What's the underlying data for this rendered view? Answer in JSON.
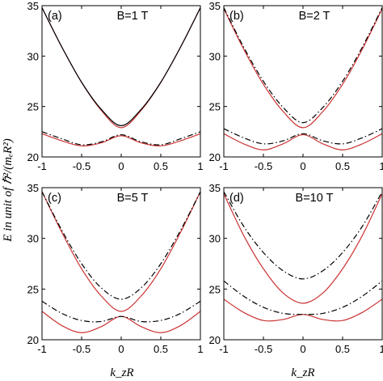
{
  "ylabel": "E   in unit of ℏ²/(mₑR²)",
  "xlabel": "k_zR",
  "chart_data": [
    {
      "type": "line",
      "panel": "(a)",
      "title": "B=1 T",
      "xlim": [
        -1,
        1
      ],
      "ylim": [
        20,
        35
      ],
      "xticks": [
        "-1",
        "-0.5",
        "0",
        "0.5",
        "1"
      ],
      "yticks": [
        "20",
        "25",
        "30",
        "35"
      ],
      "x": [
        -1,
        -0.75,
        -0.5,
        -0.25,
        0,
        0.25,
        0.5,
        0.75,
        1
      ],
      "series": [
        {
          "style": "solid-red",
          "color": "#cc3333",
          "values": [
            22.3,
            21.6,
            21.1,
            21.4,
            22.1,
            21.4,
            21.1,
            21.6,
            22.3
          ]
        },
        {
          "style": "dashdot-black",
          "color": "#000000",
          "values": [
            22.5,
            21.8,
            21.2,
            21.5,
            22.2,
            21.5,
            21.2,
            21.8,
            22.5
          ]
        },
        {
          "style": "solid-red",
          "color": "#cc3333",
          "values": [
            34.8,
            30.9,
            27.4,
            24.6,
            22.9,
            24.6,
            27.4,
            30.9,
            34.8
          ]
        },
        {
          "style": "solid-black",
          "color": "#000000",
          "values": [
            34.8,
            30.9,
            27.4,
            24.7,
            23.1,
            24.7,
            27.4,
            30.9,
            34.8
          ]
        }
      ]
    },
    {
      "type": "line",
      "panel": "(b)",
      "title": "B=2 T",
      "xlim": [
        -1,
        1
      ],
      "ylim": [
        20,
        35
      ],
      "xticks": [
        "-1",
        "-0.5",
        "0",
        "0.5",
        "1"
      ],
      "yticks": [
        "20",
        "25",
        "30",
        "35"
      ],
      "x": [
        -1,
        -0.75,
        -0.5,
        -0.25,
        0,
        0.25,
        0.5,
        0.75,
        1
      ],
      "series": [
        {
          "style": "solid-red",
          "color": "#cc3333",
          "values": [
            22.3,
            21.3,
            20.7,
            21.3,
            22.2,
            21.3,
            20.7,
            21.3,
            22.3
          ]
        },
        {
          "style": "dashdot-black",
          "color": "#000000",
          "values": [
            22.8,
            21.9,
            21.3,
            21.6,
            22.3,
            21.6,
            21.3,
            21.9,
            22.8
          ]
        },
        {
          "style": "solid-red",
          "color": "#cc3333",
          "values": [
            34.7,
            30.7,
            27.2,
            24.5,
            22.9,
            24.5,
            27.2,
            30.7,
            34.7
          ]
        },
        {
          "style": "dashdot-black",
          "color": "#000000",
          "values": [
            34.8,
            30.9,
            27.5,
            24.9,
            23.4,
            24.9,
            27.5,
            30.9,
            34.8
          ]
        }
      ]
    },
    {
      "type": "line",
      "panel": "(c)",
      "title": "B=5 T",
      "xlim": [
        -1,
        1
      ],
      "ylim": [
        20,
        35
      ],
      "xticks": [
        "-1",
        "-0.5",
        "0",
        "0.5",
        "1"
      ],
      "yticks": [
        "20",
        "25",
        "30",
        "35"
      ],
      "x": [
        -1,
        -0.75,
        -0.5,
        -0.25,
        0,
        0.25,
        0.5,
        0.75,
        1
      ],
      "series": [
        {
          "style": "solid-red",
          "color": "#cc3333",
          "values": [
            22.8,
            21.4,
            20.7,
            21.3,
            22.3,
            21.3,
            20.7,
            21.4,
            22.8
          ]
        },
        {
          "style": "dashdot-black",
          "color": "#000000",
          "values": [
            23.8,
            22.6,
            21.9,
            21.8,
            22.3,
            21.8,
            21.9,
            22.6,
            23.8
          ]
        },
        {
          "style": "solid-red",
          "color": "#cc3333",
          "values": [
            34.6,
            30.6,
            27.0,
            24.3,
            22.8,
            24.3,
            27.0,
            30.6,
            34.6
          ]
        },
        {
          "style": "dashdot-black",
          "color": "#000000",
          "values": [
            34.6,
            30.8,
            27.5,
            25.1,
            24.0,
            25.1,
            27.5,
            30.8,
            34.6
          ]
        }
      ]
    },
    {
      "type": "line",
      "panel": "(d)",
      "title": "B=10 T",
      "xlim": [
        -1,
        1
      ],
      "ylim": [
        20,
        35
      ],
      "xticks": [
        "-1",
        "-0.5",
        "0",
        "0.5",
        "1"
      ],
      "yticks": [
        "20",
        "25",
        "30",
        "35"
      ],
      "x": [
        -1,
        -0.75,
        -0.5,
        -0.25,
        0,
        0.25,
        0.5,
        0.75,
        1
      ],
      "series": [
        {
          "style": "solid-red",
          "color": "#cc3333",
          "values": [
            24.0,
            22.7,
            21.9,
            22.0,
            22.5,
            22.0,
            21.9,
            22.7,
            24.0
          ]
        },
        {
          "style": "dashdot-black",
          "color": "#000000",
          "values": [
            25.8,
            24.3,
            23.2,
            22.6,
            22.5,
            22.6,
            23.2,
            24.3,
            25.8
          ]
        },
        {
          "style": "solid-red",
          "color": "#cc3333",
          "values": [
            34.4,
            30.3,
            27.0,
            24.6,
            23.6,
            24.6,
            27.0,
            30.3,
            34.4
          ]
        },
        {
          "style": "dashdot-black",
          "color": "#000000",
          "values": [
            34.6,
            31.2,
            28.6,
            26.8,
            26.0,
            26.8,
            28.6,
            31.2,
            34.6
          ]
        }
      ]
    }
  ]
}
